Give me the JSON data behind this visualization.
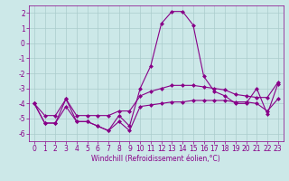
{
  "x": [
    0,
    1,
    2,
    3,
    4,
    5,
    6,
    7,
    8,
    9,
    10,
    11,
    12,
    13,
    14,
    15,
    16,
    17,
    18,
    19,
    20,
    21,
    22,
    23
  ],
  "y_main": [
    -4.0,
    -5.3,
    -5.3,
    -3.7,
    -5.2,
    -5.2,
    -5.5,
    -5.8,
    -4.8,
    -5.5,
    -3.0,
    -1.5,
    1.3,
    2.1,
    2.1,
    1.2,
    -2.2,
    -3.2,
    -3.5,
    -4.0,
    -4.0,
    -3.0,
    -4.7,
    -2.7
  ],
  "y_upper": [
    -4.0,
    -4.8,
    -4.8,
    -3.7,
    -4.8,
    -4.8,
    -4.8,
    -4.8,
    -4.5,
    -4.5,
    -3.5,
    -3.2,
    -3.0,
    -2.8,
    -2.8,
    -2.8,
    -2.9,
    -3.0,
    -3.1,
    -3.4,
    -3.5,
    -3.6,
    -3.6,
    -2.6
  ],
  "y_lower": [
    -4.0,
    -5.3,
    -5.3,
    -4.2,
    -5.2,
    -5.2,
    -5.5,
    -5.8,
    -5.2,
    -5.8,
    -4.2,
    -4.1,
    -4.0,
    -3.9,
    -3.9,
    -3.8,
    -3.8,
    -3.8,
    -3.8,
    -3.9,
    -3.9,
    -4.0,
    -4.5,
    -3.7
  ],
  "xlabel": "Windchill (Refroidissement éolien,°C)",
  "ylim": [
    -6.5,
    2.5
  ],
  "xlim": [
    -0.5,
    23.5
  ],
  "yticks": [
    -6,
    -5,
    -4,
    -3,
    -2,
    -1,
    0,
    1,
    2
  ],
  "xticks": [
    0,
    1,
    2,
    3,
    4,
    5,
    6,
    7,
    8,
    9,
    10,
    11,
    12,
    13,
    14,
    15,
    16,
    17,
    18,
    19,
    20,
    21,
    22,
    23
  ],
  "bg_color": "#cce8e8",
  "grid_color": "#aacccc",
  "line_color": "#880088",
  "markersize": 2.5,
  "linewidth": 0.8,
  "tick_fontsize": 5.5,
  "xlabel_fontsize": 5.5
}
